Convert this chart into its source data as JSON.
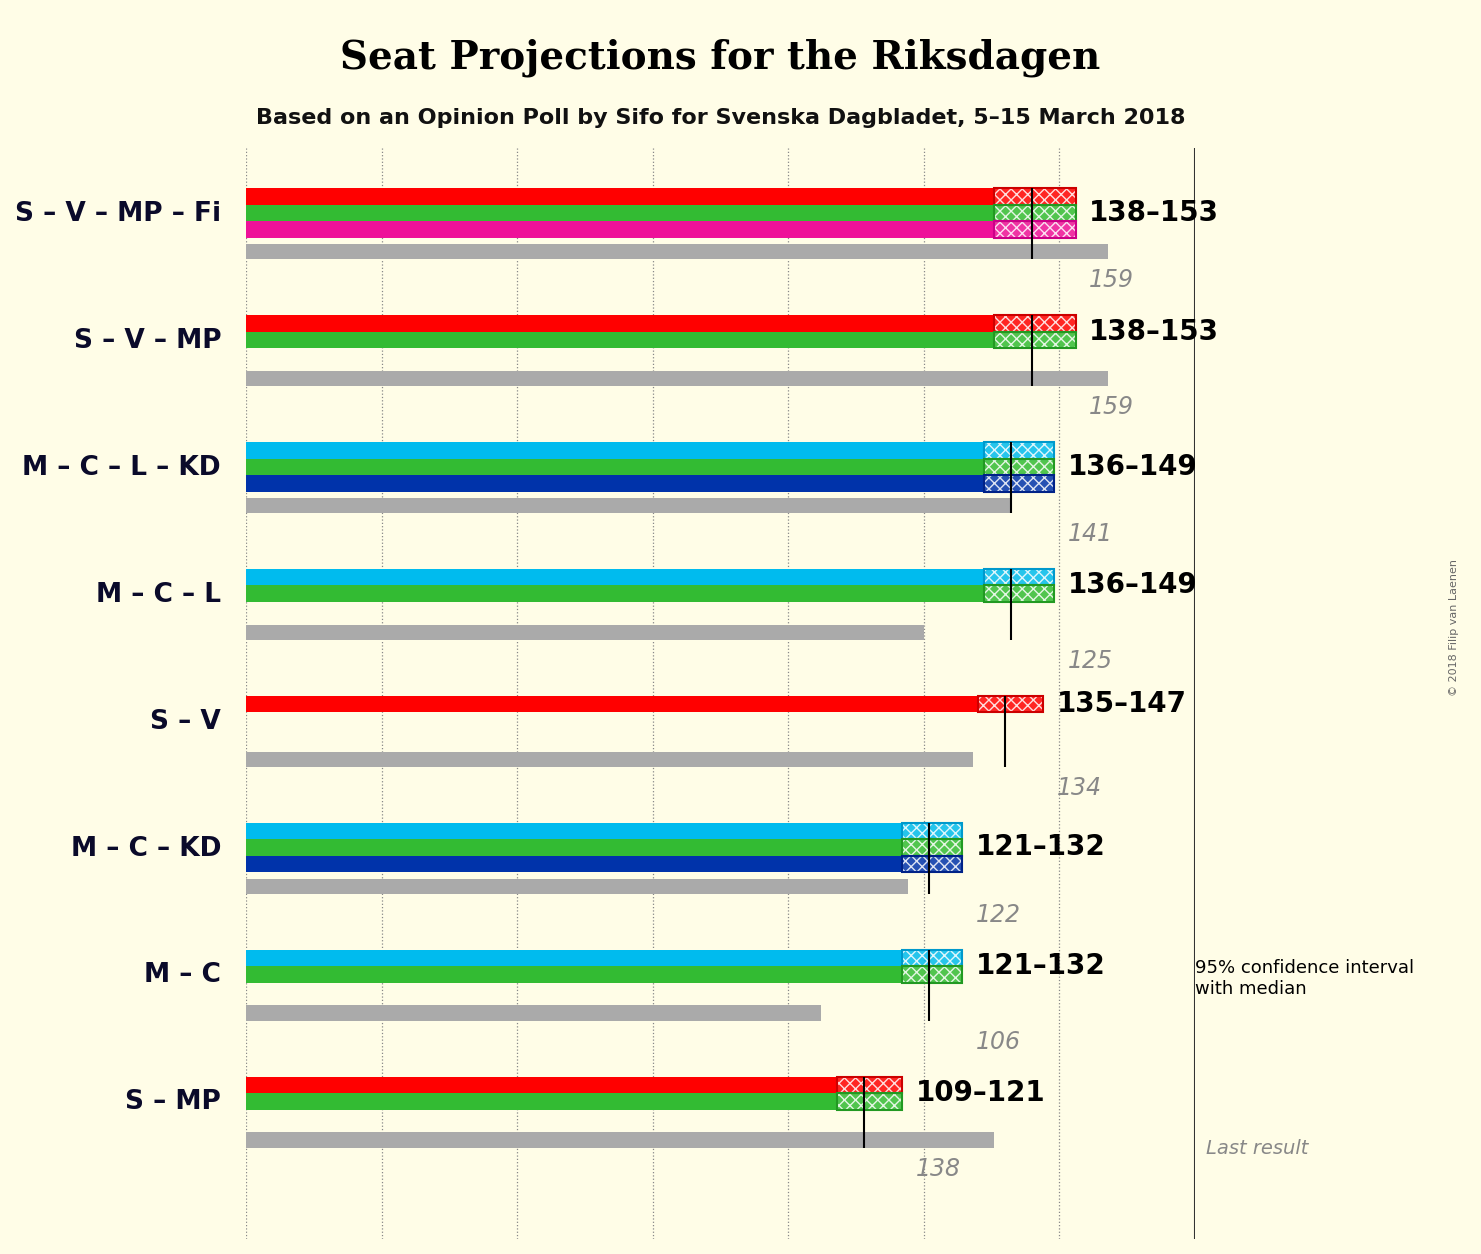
{
  "title": "Seat Projections for the Riksdagen",
  "subtitle": "Based on an Opinion Poll by Sifo for Svenska Dagbladet, 5–15 March 2018",
  "copyright": "© 2018 Filip van Laenen",
  "background_color": "#fffde7",
  "coalitions": [
    {
      "label": "S – V – MP – Fi",
      "low": 138,
      "high": 153,
      "median": 145,
      "last_result": 159,
      "range_text": "138–153",
      "last_text": "159",
      "party_bars": [
        {
          "color": "#ff0000",
          "hatch_color": "#ff0000",
          "border": "#cc0000"
        },
        {
          "color": "#33bb33",
          "hatch_color": "#33bb33",
          "border": "#229922"
        },
        {
          "color": "#ee1199",
          "hatch_color": "#ee1199",
          "border": "#cc0088"
        }
      ]
    },
    {
      "label": "S – V – MP",
      "low": 138,
      "high": 153,
      "median": 145,
      "last_result": 159,
      "range_text": "138–153",
      "last_text": "159",
      "party_bars": [
        {
          "color": "#ff0000",
          "hatch_color": "#ff0000",
          "border": "#cc0000"
        },
        {
          "color": "#33bb33",
          "hatch_color": "#33bb33",
          "border": "#229922"
        }
      ]
    },
    {
      "label": "M – C – L – KD",
      "low": 136,
      "high": 149,
      "median": 141,
      "last_result": 141,
      "range_text": "136–149",
      "last_text": "141",
      "party_bars": [
        {
          "color": "#00bbee",
          "hatch_color": "#00bbee",
          "border": "#0099cc"
        },
        {
          "color": "#33bb33",
          "hatch_color": "#33bb33",
          "border": "#229922"
        },
        {
          "color": "#0033aa",
          "hatch_color": "#0033aa",
          "border": "#002288"
        }
      ]
    },
    {
      "label": "M – C – L",
      "low": 136,
      "high": 149,
      "median": 141,
      "last_result": 125,
      "range_text": "136–149",
      "last_text": "125",
      "party_bars": [
        {
          "color": "#00bbee",
          "hatch_color": "#00bbee",
          "border": "#0099cc"
        },
        {
          "color": "#33bb33",
          "hatch_color": "#33bb33",
          "border": "#229922"
        }
      ]
    },
    {
      "label": "S – V",
      "low": 135,
      "high": 147,
      "median": 140,
      "last_result": 134,
      "range_text": "135–147",
      "last_text": "134",
      "party_bars": [
        {
          "color": "#ff0000",
          "hatch_color": "#ff0000",
          "border": "#cc0000"
        }
      ]
    },
    {
      "label": "M – C – KD",
      "low": 121,
      "high": 132,
      "median": 126,
      "last_result": 122,
      "range_text": "121–132",
      "last_text": "122",
      "party_bars": [
        {
          "color": "#00bbee",
          "hatch_color": "#00bbee",
          "border": "#0099cc"
        },
        {
          "color": "#33bb33",
          "hatch_color": "#33bb33",
          "border": "#229922"
        },
        {
          "color": "#0033aa",
          "hatch_color": "#0033aa",
          "border": "#002288"
        }
      ]
    },
    {
      "label": "M – C",
      "low": 121,
      "high": 132,
      "median": 126,
      "last_result": 106,
      "range_text": "121–132",
      "last_text": "106",
      "party_bars": [
        {
          "color": "#00bbee",
          "hatch_color": "#00bbee",
          "border": "#0099cc"
        },
        {
          "color": "#33bb33",
          "hatch_color": "#33bb33",
          "border": "#229922"
        }
      ]
    },
    {
      "label": "S – MP",
      "low": 109,
      "high": 121,
      "median": 114,
      "last_result": 138,
      "range_text": "109–121",
      "last_text": "138",
      "party_bars": [
        {
          "color": "#ff0000",
          "hatch_color": "#ff0000",
          "border": "#cc0000"
        },
        {
          "color": "#33bb33",
          "hatch_color": "#33bb33",
          "border": "#229922"
        }
      ]
    }
  ],
  "xlim": [
    0,
    175
  ],
  "grid_ticks": [
    0,
    25,
    50,
    75,
    100,
    125,
    150,
    175
  ]
}
